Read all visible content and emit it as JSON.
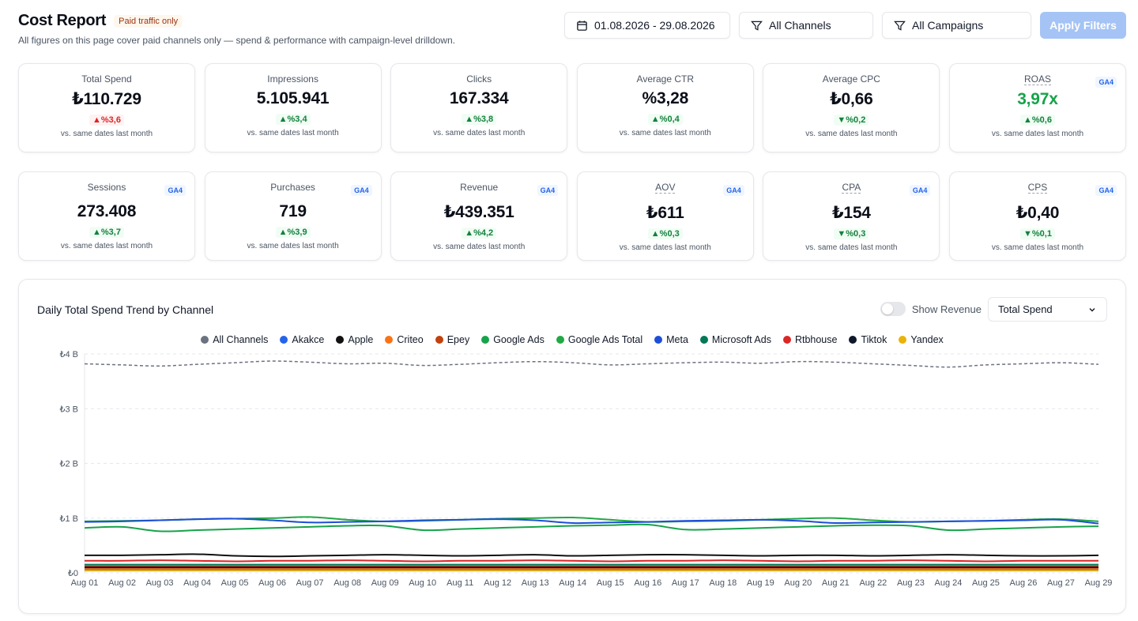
{
  "header": {
    "title": "Cost Report",
    "badge": "Paid traffic only",
    "subtitle": "All figures on this page cover paid channels only — spend & performance with campaign-level drilldown."
  },
  "filters": {
    "date_range": "01.08.2026 - 29.08.2026",
    "channels": "All Channels",
    "campaigns": "All Campaigns",
    "apply_label": "Apply Filters"
  },
  "kpis_row1": [
    {
      "label": "Total Spend",
      "value": "₺110.729",
      "change": "▲%3,6",
      "tone": "up-red",
      "note": "vs. same dates last month",
      "ga4": ""
    },
    {
      "label": "Impressions",
      "value": "5.105.941",
      "change": "▲%3,4",
      "tone": "up-green",
      "note": "vs. same dates last month",
      "ga4": ""
    },
    {
      "label": "Clicks",
      "value": "167.334",
      "change": "▲%3,8",
      "tone": "up-green",
      "note": "vs. same dates last month",
      "ga4": ""
    },
    {
      "label": "Average CTR",
      "value": "%3,28",
      "change": "▲%0,4",
      "tone": "up-green",
      "note": "vs. same dates last month",
      "ga4": ""
    },
    {
      "label": "Average CPC",
      "value": "₺0,66",
      "change": "▼%0,2",
      "tone": "down-green",
      "note": "vs. same dates last month",
      "ga4": ""
    },
    {
      "label": "ROAS",
      "value": "3,97x",
      "change": "▲%0,6",
      "tone": "up-green",
      "note": "vs. same dates last month",
      "ga4": "GA4"
    }
  ],
  "kpis_row2": [
    {
      "label": "Sessions",
      "value": "273.408",
      "change": "▲%3,7",
      "tone": "up-green",
      "note": "vs. same dates last month",
      "ga4": "GA4"
    },
    {
      "label": "Purchases",
      "value": "719",
      "change": "▲%3,9",
      "tone": "up-green",
      "note": "vs. same dates last month",
      "ga4": "GA4"
    },
    {
      "label": "Revenue",
      "value": "₺439.351",
      "change": "▲%4,2",
      "tone": "up-green",
      "note": "vs. same dates last month",
      "ga4": "GA4"
    },
    {
      "label": "AOV",
      "value": "₺611",
      "change": "▲%0,3",
      "tone": "up-green",
      "note": "vs. same dates last month",
      "ga4": "GA4"
    },
    {
      "label": "CPA",
      "value": "₺154",
      "change": "▼%0,3",
      "tone": "down-green",
      "note": "vs. same dates last month",
      "ga4": "GA4"
    },
    {
      "label": "CPS",
      "value": "₺0,40",
      "change": "▼%0,1",
      "tone": "down-green",
      "note": "vs. same dates last month",
      "ga4": "GA4"
    }
  ],
  "chart": {
    "title": "Daily Total Spend Trend by Channel",
    "toggle_label": "Show Revenue",
    "metric_selected": "Total Spend"
  },
  "chart_data": {
    "type": "line",
    "title": "Daily Total Spend Trend by Channel",
    "x": [
      "Aug 01",
      "Aug 02",
      "Aug 03",
      "Aug 04",
      "Aug 05",
      "Aug 06",
      "Aug 07",
      "Aug 08",
      "Aug 09",
      "Aug 10",
      "Aug 11",
      "Aug 12",
      "Aug 13",
      "Aug 14",
      "Aug 15",
      "Aug 16",
      "Aug 17",
      "Aug 18",
      "Aug 19",
      "Aug 20",
      "Aug 21",
      "Aug 22",
      "Aug 23",
      "Aug 24",
      "Aug 25",
      "Aug 26",
      "Aug 27",
      "Aug 29"
    ],
    "y_ticks": [
      "₺0",
      "₺1 B",
      "₺2 B",
      "₺3 B",
      "₺4 B"
    ],
    "ylim": [
      0,
      4
    ],
    "legend_position": "top",
    "grid": true,
    "series": [
      {
        "name": "All Channels",
        "color": "#6b7280",
        "dashed": true,
        "values": [
          3.82,
          3.8,
          3.78,
          3.81,
          3.84,
          3.87,
          3.85,
          3.82,
          3.83,
          3.79,
          3.81,
          3.84,
          3.86,
          3.84,
          3.8,
          3.82,
          3.84,
          3.85,
          3.83,
          3.86,
          3.85,
          3.82,
          3.79,
          3.76,
          3.8,
          3.82,
          3.84,
          3.81
        ]
      },
      {
        "name": "Akakce",
        "color": "#2563eb",
        "dashed": false,
        "values": [
          0.05,
          0.05,
          0.05,
          0.05,
          0.05,
          0.05,
          0.05,
          0.05,
          0.05,
          0.05,
          0.05,
          0.05,
          0.05,
          0.05,
          0.05,
          0.05,
          0.05,
          0.05,
          0.05,
          0.05,
          0.05,
          0.05,
          0.05,
          0.05,
          0.05,
          0.05,
          0.05,
          0.05
        ]
      },
      {
        "name": "Apple",
        "color": "#111111",
        "dashed": false,
        "values": [
          0.32,
          0.32,
          0.33,
          0.34,
          0.31,
          0.3,
          0.31,
          0.32,
          0.33,
          0.32,
          0.31,
          0.32,
          0.33,
          0.31,
          0.32,
          0.33,
          0.33,
          0.32,
          0.31,
          0.32,
          0.32,
          0.31,
          0.32,
          0.33,
          0.32,
          0.31,
          0.31,
          0.32
        ]
      },
      {
        "name": "Criteo",
        "color": "#f97316",
        "dashed": false,
        "values": [
          0.08,
          0.08,
          0.08,
          0.08,
          0.08,
          0.08,
          0.08,
          0.08,
          0.08,
          0.08,
          0.08,
          0.08,
          0.08,
          0.08,
          0.08,
          0.08,
          0.08,
          0.08,
          0.08,
          0.08,
          0.08,
          0.08,
          0.08,
          0.08,
          0.08,
          0.08,
          0.08,
          0.08
        ]
      },
      {
        "name": "Epey",
        "color": "#c2410c",
        "dashed": false,
        "values": [
          0.12,
          0.12,
          0.12,
          0.12,
          0.12,
          0.12,
          0.12,
          0.12,
          0.12,
          0.12,
          0.12,
          0.12,
          0.12,
          0.12,
          0.12,
          0.12,
          0.12,
          0.12,
          0.12,
          0.12,
          0.12,
          0.12,
          0.12,
          0.12,
          0.12,
          0.12,
          0.12,
          0.12
        ]
      },
      {
        "name": "Google Ads",
        "color": "#16a34a",
        "dashed": false,
        "values": [
          0.82,
          0.84,
          0.76,
          0.78,
          0.8,
          0.82,
          0.84,
          0.86,
          0.86,
          0.78,
          0.8,
          0.82,
          0.84,
          0.86,
          0.87,
          0.88,
          0.79,
          0.8,
          0.82,
          0.84,
          0.86,
          0.87,
          0.86,
          0.78,
          0.8,
          0.82,
          0.84,
          0.85
        ]
      },
      {
        "name": "Google Ads Total",
        "color": "#22a845",
        "dashed": false,
        "values": [
          0.94,
          0.95,
          0.96,
          0.98,
          0.99,
          1.0,
          1.02,
          0.97,
          0.94,
          0.95,
          0.97,
          0.99,
          1.0,
          1.01,
          0.97,
          0.93,
          0.94,
          0.95,
          0.97,
          0.99,
          1.0,
          0.96,
          0.93,
          0.94,
          0.95,
          0.97,
          0.98,
          0.94
        ]
      },
      {
        "name": "Meta",
        "color": "#1d4ed8",
        "dashed": false,
        "values": [
          0.93,
          0.94,
          0.96,
          0.98,
          0.99,
          0.96,
          0.92,
          0.93,
          0.94,
          0.96,
          0.97,
          0.98,
          0.96,
          0.91,
          0.92,
          0.93,
          0.95,
          0.96,
          0.97,
          0.95,
          0.91,
          0.92,
          0.93,
          0.94,
          0.95,
          0.96,
          0.97,
          0.9
        ]
      },
      {
        "name": "Microsoft Ads",
        "color": "#047857",
        "dashed": false,
        "values": [
          0.15,
          0.15,
          0.15,
          0.15,
          0.15,
          0.15,
          0.15,
          0.15,
          0.15,
          0.15,
          0.15,
          0.15,
          0.15,
          0.15,
          0.15,
          0.15,
          0.15,
          0.15,
          0.15,
          0.15,
          0.15,
          0.15,
          0.15,
          0.15,
          0.15,
          0.15,
          0.15,
          0.15
        ]
      },
      {
        "name": "Rtbhouse",
        "color": "#dc2626",
        "dashed": false,
        "values": [
          0.22,
          0.22,
          0.23,
          0.22,
          0.21,
          0.22,
          0.22,
          0.23,
          0.22,
          0.21,
          0.22,
          0.22,
          0.23,
          0.22,
          0.21,
          0.22,
          0.22,
          0.23,
          0.22,
          0.21,
          0.22,
          0.22,
          0.23,
          0.22,
          0.21,
          0.22,
          0.22,
          0.22
        ]
      },
      {
        "name": "Tiktok",
        "color": "#0f172a",
        "dashed": false,
        "values": [
          0.1,
          0.1,
          0.1,
          0.1,
          0.1,
          0.1,
          0.1,
          0.1,
          0.1,
          0.1,
          0.1,
          0.1,
          0.1,
          0.1,
          0.1,
          0.1,
          0.1,
          0.1,
          0.1,
          0.1,
          0.1,
          0.1,
          0.1,
          0.1,
          0.1,
          0.1,
          0.1,
          0.1
        ]
      },
      {
        "name": "Yandex",
        "color": "#eab308",
        "dashed": false,
        "values": [
          0.04,
          0.04,
          0.04,
          0.04,
          0.04,
          0.04,
          0.04,
          0.04,
          0.04,
          0.04,
          0.04,
          0.04,
          0.04,
          0.04,
          0.04,
          0.04,
          0.04,
          0.04,
          0.04,
          0.04,
          0.04,
          0.04,
          0.04,
          0.04,
          0.04,
          0.04,
          0.04,
          0.04
        ]
      }
    ]
  }
}
